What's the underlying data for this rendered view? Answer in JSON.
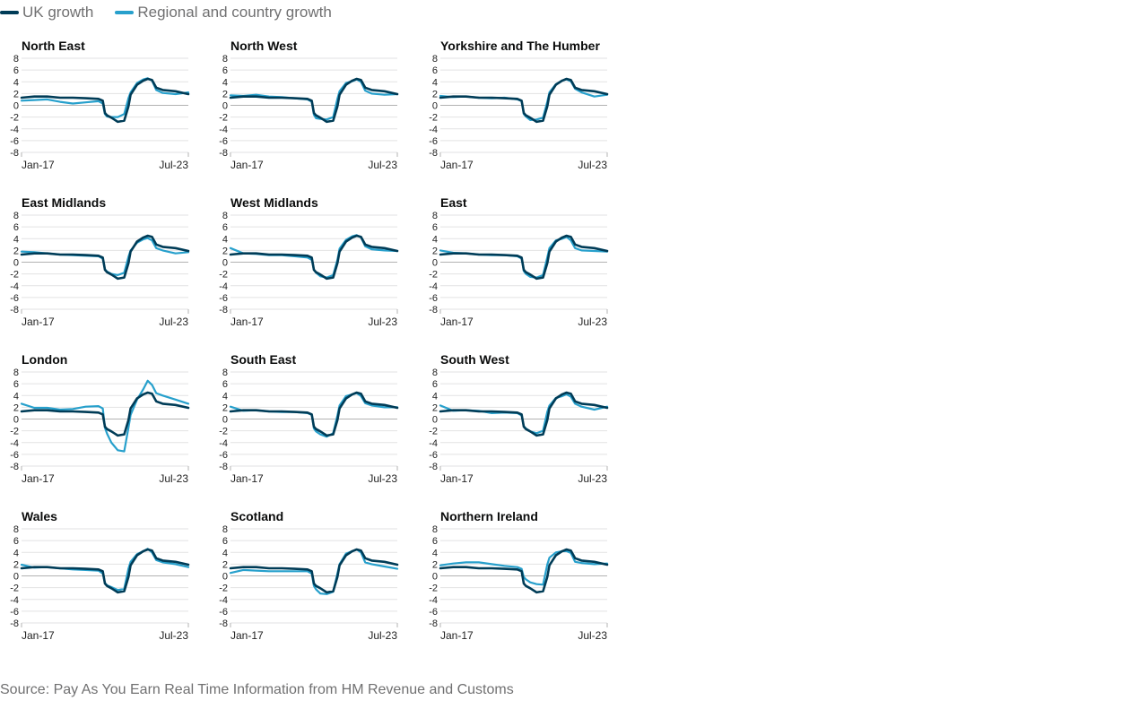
{
  "legend": [
    {
      "label": "UK growth",
      "color": "#003c57"
    },
    {
      "label": "Regional and country growth",
      "color": "#27a0cc"
    }
  ],
  "source": "Source: Pay As You Earn Real Time Information from HM Revenue and Customs",
  "chart_data": {
    "type": "line",
    "layout": "small-multiples",
    "y_ticks": [
      8,
      6,
      4,
      2,
      0,
      -2,
      -4,
      -6,
      -8
    ],
    "ylim": [
      -8,
      8
    ],
    "x_tick_labels": [
      "Jan-17",
      "Jul-23"
    ],
    "x_range": [
      "Jan-17",
      "Jul-23"
    ],
    "grid": true,
    "legend_position": "top-left",
    "uk_series": {
      "name": "UK growth",
      "color": "#003c57",
      "x": [
        "Jan-17",
        "Jul-17",
        "Jan-18",
        "Jul-18",
        "Jan-19",
        "Jul-19",
        "Jan-20",
        "Mar-20",
        "Apr-20",
        "May-20",
        "Jul-20",
        "Oct-20",
        "Jan-21",
        "Mar-21",
        "Apr-21",
        "Jul-21",
        "Oct-21",
        "Dec-21",
        "Feb-22",
        "Apr-22",
        "Jul-22",
        "Jan-23",
        "Jul-23"
      ],
      "values": [
        1.3,
        1.5,
        1.5,
        1.3,
        1.3,
        1.2,
        1.1,
        0.8,
        -1.3,
        -1.7,
        -2.1,
        -2.8,
        -2.6,
        -0.2,
        1.8,
        3.5,
        4.2,
        4.5,
        4.3,
        3.0,
        2.6,
        2.4,
        1.9
      ]
    },
    "panels": [
      {
        "title": "North East",
        "series": {
          "name": "Regional and country growth",
          "values": [
            0.8,
            0.9,
            1.0,
            0.6,
            0.3,
            0.5,
            0.7,
            0.3,
            -1.5,
            -1.9,
            -2.0,
            -2.0,
            -1.5,
            1.2,
            2.2,
            3.8,
            4.4,
            4.6,
            4.2,
            2.6,
            2.1,
            1.9,
            2.2
          ]
        }
      },
      {
        "title": "North West",
        "series": {
          "name": "Regional and country growth",
          "values": [
            1.7,
            1.6,
            1.8,
            1.5,
            1.4,
            1.2,
            1.0,
            0.6,
            -1.6,
            -2.2,
            -2.3,
            -2.4,
            -2.0,
            1.1,
            2.4,
            3.8,
            4.1,
            4.4,
            4.0,
            2.5,
            2.0,
            1.8,
            1.9
          ]
        }
      },
      {
        "title": "Yorkshire and The Humber",
        "series": {
          "name": "Regional and country growth",
          "values": [
            1.6,
            1.4,
            1.5,
            1.3,
            1.2,
            1.3,
            1.0,
            0.7,
            -1.5,
            -1.9,
            -2.5,
            -2.4,
            -2.1,
            0.6,
            2.2,
            3.6,
            4.2,
            4.4,
            4.1,
            2.8,
            2.2,
            1.5,
            1.8
          ]
        }
      },
      {
        "title": "East Midlands",
        "series": {
          "name": "Regional and country growth",
          "values": [
            1.8,
            1.7,
            1.5,
            1.3,
            1.2,
            1.1,
            1.0,
            0.6,
            -1.2,
            -1.6,
            -2.0,
            -2.2,
            -1.8,
            0.9,
            2.0,
            3.3,
            3.9,
            4.1,
            3.7,
            2.4,
            2.0,
            1.5,
            1.7
          ]
        }
      },
      {
        "title": "West Midlands",
        "series": {
          "name": "Regional and country growth",
          "values": [
            2.4,
            1.5,
            1.4,
            1.2,
            1.2,
            1.0,
            0.8,
            0.4,
            -1.3,
            -1.8,
            -2.4,
            -2.6,
            -2.2,
            0.4,
            2.3,
            3.8,
            4.4,
            4.6,
            4.2,
            2.7,
            2.2,
            2.0,
            1.9
          ]
        }
      },
      {
        "title": "East",
        "series": {
          "name": "Regional and country growth",
          "values": [
            2.0,
            1.6,
            1.5,
            1.3,
            1.2,
            1.2,
            1.0,
            0.6,
            -1.5,
            -2.0,
            -2.5,
            -2.6,
            -2.2,
            0.8,
            2.4,
            3.7,
            4.0,
            4.3,
            3.7,
            2.4,
            2.0,
            1.9,
            1.8
          ]
        }
      },
      {
        "title": "London",
        "series": {
          "name": "Regional and country growth",
          "values": [
            2.6,
            1.9,
            1.9,
            1.6,
            1.7,
            2.1,
            2.2,
            1.8,
            -1.5,
            -2.5,
            -4.0,
            -5.3,
            -5.5,
            -1.5,
            0.7,
            3.3,
            5.1,
            6.5,
            5.8,
            4.4,
            4.0,
            3.3,
            2.6
          ]
        }
      },
      {
        "title": "South East",
        "series": {
          "name": "Regional and country growth",
          "values": [
            2.1,
            1.4,
            1.5,
            1.3,
            1.2,
            1.2,
            1.0,
            0.7,
            -1.6,
            -2.1,
            -2.6,
            -3.0,
            -2.4,
            0.6,
            2.3,
            3.9,
            4.2,
            4.4,
            3.9,
            2.7,
            2.3,
            2.0,
            2.0
          ]
        }
      },
      {
        "title": "South West",
        "series": {
          "name": "Regional and country growth",
          "values": [
            2.3,
            1.4,
            1.5,
            1.4,
            1.0,
            1.1,
            1.0,
            0.6,
            -1.2,
            -1.6,
            -2.1,
            -2.4,
            -2.0,
            1.2,
            2.3,
            3.6,
            3.9,
            4.2,
            3.8,
            2.6,
            2.1,
            1.6,
            2.1
          ]
        }
      },
      {
        "title": "Wales",
        "series": {
          "name": "Regional and country growth",
          "values": [
            1.9,
            1.4,
            1.5,
            1.3,
            1.1,
            1.0,
            0.9,
            0.4,
            -1.2,
            -1.6,
            -1.9,
            -2.4,
            -2.2,
            1.2,
            2.4,
            3.7,
            4.2,
            4.6,
            4.0,
            2.7,
            2.3,
            2.0,
            1.5
          ]
        }
      },
      {
        "title": "Scotland",
        "series": {
          "name": "Regional and country growth",
          "values": [
            0.5,
            1.0,
            0.9,
            0.8,
            0.8,
            0.8,
            0.8,
            0.4,
            -1.7,
            -2.3,
            -3.0,
            -3.1,
            -2.7,
            0.4,
            2.0,
            3.8,
            4.2,
            4.5,
            4.0,
            2.3,
            2.0,
            1.6,
            1.2
          ]
        }
      },
      {
        "title": "Northern Ireland",
        "series": {
          "name": "Regional and country growth",
          "values": [
            1.8,
            2.1,
            2.3,
            2.3,
            2.0,
            1.7,
            1.5,
            1.2,
            -0.2,
            -0.6,
            -1.1,
            -1.4,
            -1.5,
            1.9,
            3.1,
            4.0,
            4.2,
            4.2,
            3.9,
            2.4,
            2.2,
            2.0,
            2.1
          ]
        }
      }
    ]
  }
}
